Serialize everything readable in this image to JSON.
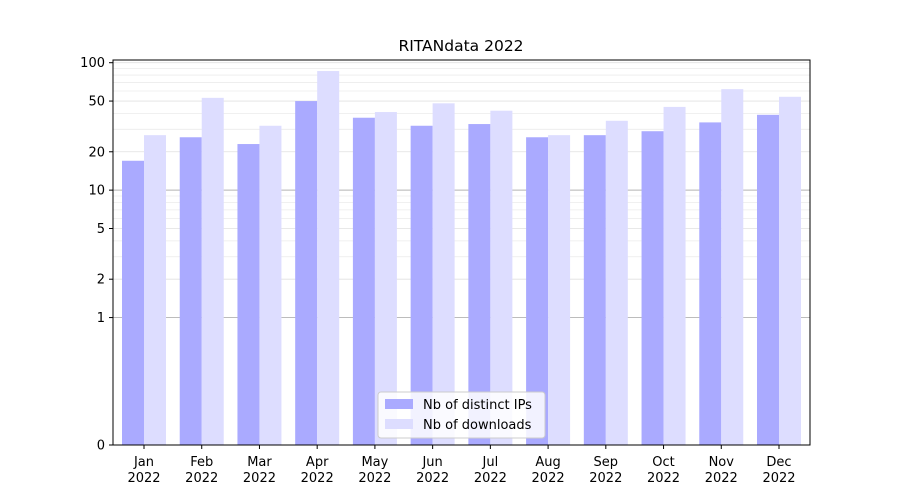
{
  "chart_data": {
    "type": "bar",
    "title": "RITANdata 2022",
    "xlabel": "",
    "ylabel": "",
    "y_scale": "symlog",
    "y_linthresh": 1,
    "ylim": [
      0,
      105
    ],
    "y_ticks": [
      0,
      1,
      2,
      5,
      10,
      20,
      50,
      100
    ],
    "categories": [
      "Jan\n2022",
      "Feb\n2022",
      "Mar\n2022",
      "Apr\n2022",
      "May\n2022",
      "Jun\n2022",
      "Jul\n2022",
      "Aug\n2022",
      "Sep\n2022",
      "Oct\n2022",
      "Nov\n2022",
      "Dec\n2022"
    ],
    "series": [
      {
        "name": "Nb of distinct IPs",
        "color": "#aaaaff",
        "values": [
          17,
          26,
          23,
          50,
          37,
          32,
          33,
          26,
          27,
          29,
          34,
          39
        ]
      },
      {
        "name": "Nb of downloads",
        "color": "#ddddff",
        "values": [
          27,
          53,
          32,
          86,
          41,
          48,
          42,
          27,
          35,
          45,
          62,
          54
        ]
      }
    ],
    "grid": true,
    "legend_position": "lower center"
  }
}
